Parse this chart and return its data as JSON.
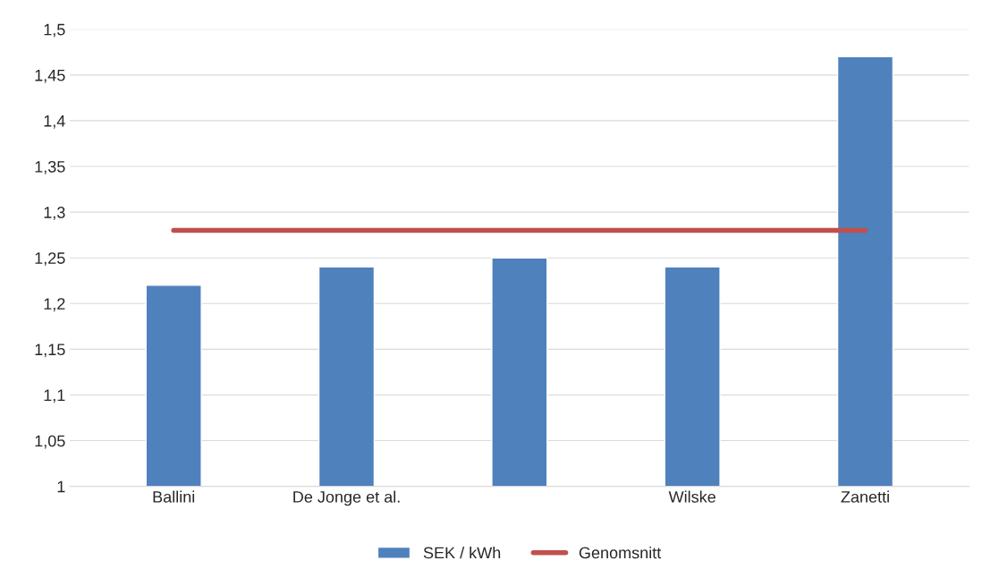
{
  "chart_data": {
    "type": "bar",
    "categories": [
      "Ballini",
      "De Jonge et al.",
      null,
      "Wilske",
      "Zanetti"
    ],
    "series": [
      {
        "name": "SEK / kWh",
        "color": "#4f81bd",
        "values": [
          1.22,
          1.24,
          1.25,
          1.24,
          1.47
        ]
      },
      {
        "name": "Genomsnitt",
        "type": "line",
        "color": "#c0504d",
        "values": [
          1.28,
          1.28,
          1.28,
          1.28,
          1.28
        ]
      }
    ],
    "ylim": [
      1,
      1.5
    ],
    "yticks": [
      {
        "value": 1,
        "label": "1"
      },
      {
        "value": 1.05,
        "label": "1,05"
      },
      {
        "value": 1.1,
        "label": "1,1"
      },
      {
        "value": 1.15,
        "label": "1,15"
      },
      {
        "value": 1.2,
        "label": "1,2"
      },
      {
        "value": 1.25,
        "label": "1,25"
      },
      {
        "value": 1.3,
        "label": "1,3"
      },
      {
        "value": 1.35,
        "label": "1,35"
      },
      {
        "value": 1.4,
        "label": "1,4"
      },
      {
        "value": 1.45,
        "label": "1,45"
      },
      {
        "value": 1.5,
        "label": "1,5"
      }
    ],
    "grid": "y",
    "legend": "bottom"
  }
}
